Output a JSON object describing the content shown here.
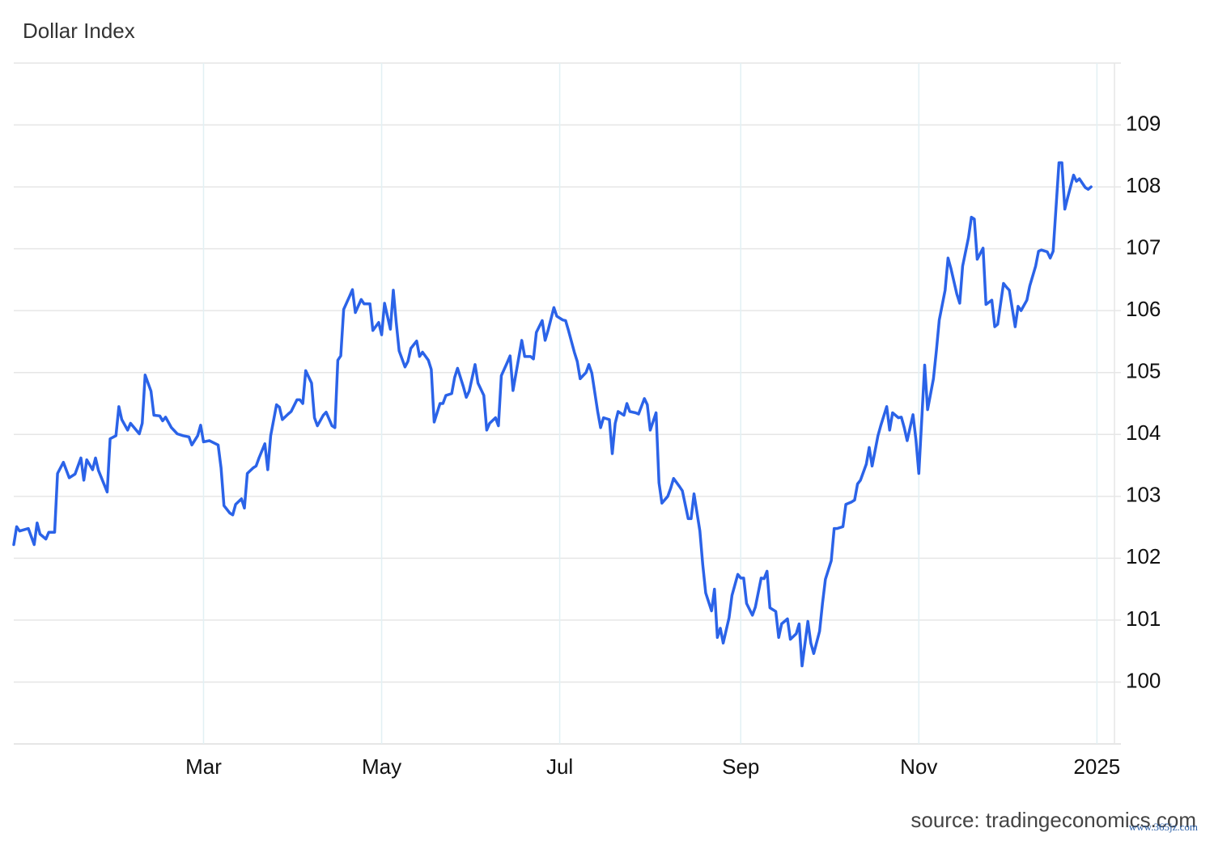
{
  "chart_data": {
    "type": "line",
    "title": "Dollar Index",
    "source": "source: tradingeconomics.com",
    "watermark": "www.365jz.com",
    "color": "#2b63e8",
    "grid": true,
    "y_axis_side": "right",
    "xlim": [
      -5,
      372
    ],
    "xticks": [
      {
        "value": 60,
        "label": "Mar"
      },
      {
        "value": 121,
        "label": "May"
      },
      {
        "value": 182,
        "label": "Jul"
      },
      {
        "value": 244,
        "label": "Sep"
      },
      {
        "value": 305,
        "label": "Nov"
      },
      {
        "value": 366,
        "label": "2025"
      }
    ],
    "ylim": [
      99,
      110
    ],
    "yticks": [
      100,
      101,
      102,
      103,
      104,
      105,
      106,
      107,
      108,
      109
    ],
    "x": [
      -5,
      -4,
      -3,
      0,
      2,
      3,
      4,
      6,
      7,
      9,
      10,
      12,
      14,
      16,
      18,
      19,
      20,
      22,
      23,
      24,
      27,
      28,
      30,
      31,
      32,
      34,
      35,
      38,
      39,
      40,
      42,
      43,
      45,
      46,
      47,
      49,
      51,
      53,
      55,
      56,
      58,
      59,
      60,
      62,
      65,
      66,
      67,
      69,
      70,
      71,
      73,
      74,
      75,
      77,
      78,
      79,
      81,
      82,
      83,
      85,
      86,
      87,
      89,
      90,
      92,
      93,
      94,
      95,
      97,
      98,
      99,
      101,
      102,
      104,
      105,
      106,
      107,
      108,
      110,
      111,
      112,
      114,
      115,
      117,
      118,
      120,
      121,
      122,
      124,
      125,
      126,
      127,
      129,
      130,
      131,
      133,
      134,
      135,
      137,
      138,
      139,
      141,
      142,
      143,
      145,
      146,
      147,
      149,
      150,
      151,
      153,
      154,
      156,
      157,
      158,
      160,
      161,
      162,
      164,
      165,
      166,
      168,
      169,
      170,
      172,
      173,
      174,
      176,
      177,
      178,
      180,
      181,
      183,
      184,
      185,
      187,
      188,
      189,
      191,
      192,
      193,
      195,
      196,
      197,
      199,
      200,
      201,
      202,
      204,
      205,
      206,
      208,
      209,
      211,
      212,
      213,
      215,
      216,
      217,
      219,
      220,
      221,
      223,
      224,
      226,
      227,
      228,
      230,
      231,
      232,
      234,
      235,
      236,
      237,
      238,
      240,
      241,
      243,
      244,
      245,
      246,
      248,
      249,
      251,
      252,
      253,
      254,
      256,
      257,
      258,
      260,
      261,
      263,
      264,
      265,
      267,
      268,
      269,
      271,
      272,
      273,
      275,
      276,
      277,
      279,
      280,
      282,
      283,
      284,
      285,
      287,
      288,
      289,
      291,
      292,
      294,
      295,
      296,
      298,
      299,
      300,
      301,
      303,
      304,
      305,
      307,
      308,
      310,
      311,
      312,
      314,
      315,
      316,
      318,
      319,
      320,
      322,
      323,
      324,
      325,
      327,
      328,
      330,
      331,
      332,
      334,
      335,
      336,
      338,
      339,
      340,
      342,
      343,
      345,
      346,
      347,
      349,
      350,
      351,
      353,
      354,
      355,
      356,
      358,
      359,
      360,
      362,
      363,
      364
    ],
    "values": [
      102.22,
      102.51,
      102.44,
      102.48,
      102.22,
      102.57,
      102.39,
      102.31,
      102.42,
      102.42,
      103.37,
      103.55,
      103.3,
      103.36,
      103.62,
      103.26,
      103.59,
      103.43,
      103.62,
      103.42,
      103.07,
      103.93,
      103.98,
      104.45,
      104.24,
      104.07,
      104.18,
      104.01,
      104.18,
      104.96,
      104.7,
      104.31,
      104.3,
      104.22,
      104.28,
      104.11,
      104.01,
      103.98,
      103.96,
      103.83,
      103.98,
      104.15,
      103.88,
      103.9,
      103.83,
      103.46,
      102.85,
      102.73,
      102.7,
      102.87,
      102.96,
      102.81,
      103.37,
      103.46,
      103.49,
      103.62,
      103.85,
      103.43,
      103.98,
      104.48,
      104.44,
      104.24,
      104.33,
      104.37,
      104.56,
      104.56,
      104.5,
      105.03,
      104.83,
      104.27,
      104.14,
      104.31,
      104.36,
      104.14,
      104.11,
      105.2,
      105.27,
      106.02,
      106.23,
      106.34,
      105.97,
      106.18,
      106.11,
      106.11,
      105.68,
      105.81,
      105.61,
      106.12,
      105.7,
      106.33,
      105.81,
      105.35,
      105.09,
      105.18,
      105.39,
      105.51,
      105.26,
      105.33,
      105.2,
      105.05,
      104.2,
      104.5,
      104.5,
      104.63,
      104.66,
      104.92,
      105.07,
      104.77,
      104.6,
      104.7,
      105.13,
      104.83,
      104.63,
      104.07,
      104.18,
      104.27,
      104.14,
      104.95,
      105.16,
      105.27,
      104.71,
      105.25,
      105.52,
      105.26,
      105.26,
      105.22,
      105.65,
      105.84,
      105.52,
      105.68,
      106.05,
      105.91,
      105.85,
      105.84,
      105.68,
      105.33,
      105.18,
      104.9,
      105.0,
      105.13,
      104.99,
      104.37,
      104.11,
      104.27,
      104.24,
      103.69,
      104.18,
      104.37,
      104.31,
      104.5,
      104.37,
      104.35,
      104.33,
      104.58,
      104.48,
      104.07,
      104.35,
      103.22,
      102.89,
      103.0,
      103.13,
      103.29,
      103.16,
      103.09,
      102.64,
      102.64,
      103.04,
      102.44,
      101.89,
      101.44,
      101.15,
      101.5,
      100.72,
      100.87,
      100.63,
      101.04,
      101.4,
      101.74,
      101.68,
      101.68,
      101.27,
      101.08,
      101.21,
      101.68,
      101.67,
      101.79,
      101.2,
      101.14,
      100.72,
      100.94,
      101.02,
      100.69,
      100.78,
      100.94,
      100.26,
      100.98,
      100.63,
      100.46,
      100.82,
      101.27,
      101.66,
      101.96,
      102.48,
      102.48,
      102.51,
      102.87,
      102.91,
      102.94,
      103.2,
      103.26,
      103.52,
      103.79,
      103.49,
      103.98,
      104.15,
      104.45,
      104.07,
      104.35,
      104.27,
      104.28,
      104.11,
      103.9,
      104.32,
      103.92,
      103.37,
      105.12,
      104.4,
      104.9,
      105.35,
      105.85,
      106.33,
      106.85,
      106.68,
      106.27,
      106.12,
      106.72,
      107.18,
      107.51,
      107.48,
      106.83,
      107.01,
      106.1,
      106.17,
      105.74,
      105.78,
      106.44,
      106.38,
      106.33,
      105.74,
      106.07,
      106.0,
      106.17,
      106.4,
      106.72,
      106.96,
      106.98,
      106.95,
      106.85,
      106.96,
      108.39,
      108.39,
      107.64,
      107.83,
      108.19,
      108.09,
      108.13,
      107.99,
      107.96,
      108.0
    ]
  }
}
